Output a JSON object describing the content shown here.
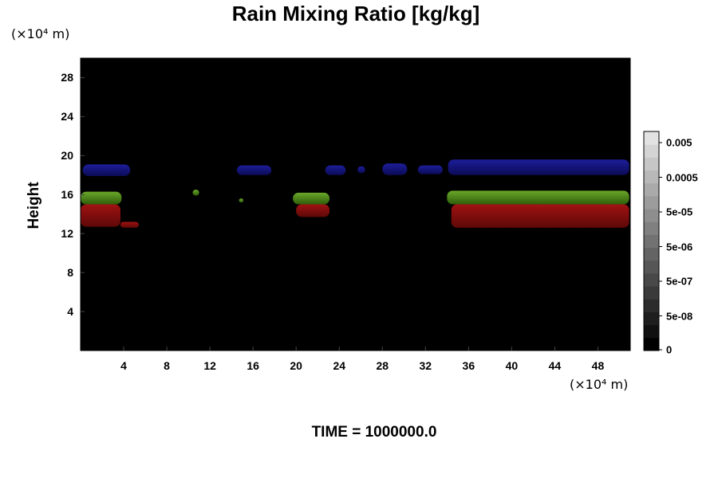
{
  "chart_data": {
    "type": "heatmap",
    "title": "Rain Mixing Ratio [kg/kg]",
    "ylabel": "Height",
    "xlabel": "",
    "x_unit": "(×10⁴ m)",
    "y_unit": "(×10⁴ m)",
    "xlim": [
      0,
      51
    ],
    "ylim": [
      0,
      30
    ],
    "x_ticks": [
      4,
      8,
      12,
      16,
      20,
      24,
      28,
      32,
      36,
      40,
      44,
      48
    ],
    "y_ticks": [
      4,
      8,
      12,
      16,
      20,
      24,
      28
    ],
    "background": "#000000",
    "colorbar": {
      "tick_labels": [
        "0.005",
        "0.0005",
        "5e-05",
        "5e-06",
        "5e-07",
        "5e-08",
        "0"
      ],
      "colors": [
        "#000000",
        "#101010",
        "#1e1e1e",
        "#2c2c2c",
        "#3a3a3a",
        "#484848",
        "#565656",
        "#646464",
        "#727272",
        "#808080",
        "#8e8e8e",
        "#9c9c9c",
        "#aaaaaa",
        "#b8b8b8",
        "#c6c6c6",
        "#d4d4d4",
        "#e2e2e2"
      ]
    },
    "features": [
      {
        "color": "#1a1a8c",
        "kind": "blue-band",
        "segments": [
          [
            0.2,
            4.6,
            17.9,
            19.1
          ],
          [
            14.5,
            17.7,
            18.0,
            19.0
          ],
          [
            22.7,
            24.6,
            18.0,
            19.0
          ],
          [
            25.7,
            26.4,
            18.2,
            18.9
          ],
          [
            28.0,
            30.3,
            18.0,
            19.2
          ],
          [
            31.3,
            33.6,
            18.1,
            19.0
          ],
          [
            34.1,
            50.9,
            18.0,
            19.6
          ]
        ]
      },
      {
        "color": "#4c8c14",
        "kind": "green-band",
        "segments": [
          [
            0,
            3.8,
            15.0,
            16.3
          ],
          [
            19.7,
            23.1,
            15.0,
            16.2
          ],
          [
            34.0,
            50.9,
            15.0,
            16.4
          ]
        ]
      },
      {
        "color": "#8c0c0c",
        "kind": "red-band",
        "segments": [
          [
            0,
            3.7,
            12.7,
            15.0
          ],
          [
            20.0,
            23.1,
            13.7,
            15.0
          ],
          [
            34.4,
            50.9,
            12.6,
            15.0
          ]
        ]
      },
      {
        "color": "#8c0c0c",
        "kind": "red-blob",
        "segments": [
          [
            3.7,
            5.4,
            12.6,
            13.2
          ]
        ]
      },
      {
        "color": "#4c8c14",
        "kind": "green-dots",
        "segments": [
          [
            10.4,
            11.0,
            15.9,
            16.5
          ],
          [
            14.7,
            15.1,
            15.2,
            15.6
          ]
        ]
      }
    ]
  },
  "time_label": "TIME = 1000000.0"
}
